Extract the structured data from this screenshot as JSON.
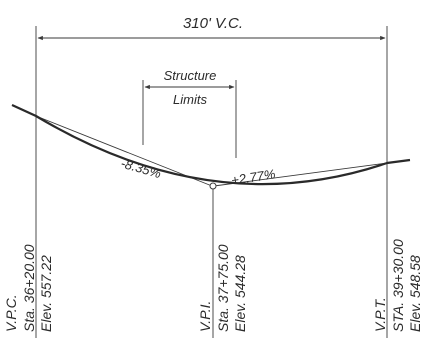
{
  "curve_length_label": "310' V.C.",
  "structure_label_line1": "Structure",
  "structure_label_line2": "Limits",
  "grade_left": "-8.35%",
  "grade_right": "+2.77%",
  "vpc": {
    "name": "V.P.C.",
    "station": "Sta. 36+20.00",
    "elevation": "Elev. 557.22"
  },
  "vpi": {
    "name": "V.P.I.",
    "station": "Sta. 37+75.00",
    "elevation": "Elev. 544.28"
  },
  "vpt": {
    "name": "V.P.T.",
    "station": "STA. 39+30.00",
    "elevation": "Elev. 548.58"
  }
}
